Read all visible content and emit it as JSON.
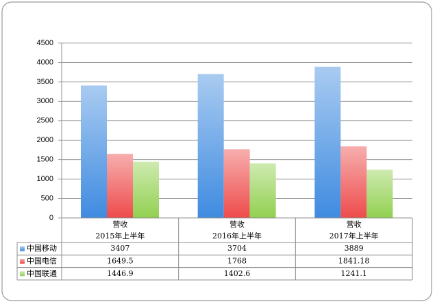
{
  "chart_data": {
    "type": "bar",
    "categories": [
      [
        "营收",
        "2015年上半年"
      ],
      [
        "营收",
        "2016年上半年"
      ],
      [
        "营收",
        "2017年上半年"
      ]
    ],
    "series": [
      {
        "name": "中国移动",
        "color": "#3f8be0",
        "values": [
          3407,
          3704,
          3889
        ]
      },
      {
        "name": "中国电信",
        "color": "#ee4b4b",
        "values": [
          1649.5,
          1768,
          1841.18
        ]
      },
      {
        "name": "中国联通",
        "color": "#92d050",
        "values": [
          1446.9,
          1402.6,
          1241.1
        ]
      }
    ],
    "ylim": [
      0,
      4500
    ],
    "yticks": [
      0,
      500,
      1000,
      1500,
      2000,
      2500,
      3000,
      3500,
      4000,
      4500
    ],
    "grid": true,
    "data_table": true
  }
}
